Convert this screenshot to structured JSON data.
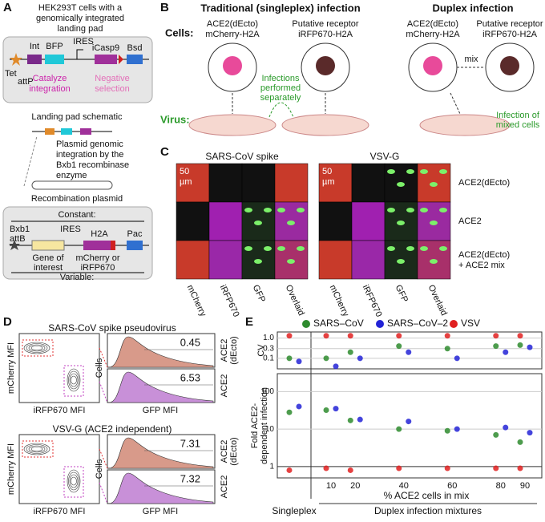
{
  "panel_labels": [
    "A",
    "B",
    "C",
    "D",
    "E"
  ],
  "a": {
    "title_lines": [
      "HEK293T cells with a",
      "genomically integrated",
      "landing pad"
    ],
    "tet": "Tet",
    "attp": "attP",
    "int": "Int",
    "bfp": "BFP",
    "ires": "IRES",
    "icasp9": "iCasp9",
    "bsd": "Bsd",
    "catalyze": [
      "Catalyze",
      "integration"
    ],
    "negative": [
      "Negative",
      "selection"
    ],
    "landing_pad": "Landing pad schematic",
    "plasmid_text": [
      "Plasmid genomic",
      "integration by the",
      "Bxb1 recombinase",
      "enzyme"
    ],
    "recomb": "Recombination plasmid",
    "constant": "Constant:",
    "bxb1": [
      "Bxb1",
      "attB"
    ],
    "ires2": "IRES",
    "h2a": "H2A",
    "pac": "Pac",
    "goi": [
      "Gene of",
      "interest"
    ],
    "reporter": [
      "mCherry or",
      "iRFP670"
    ],
    "variable": "Variable:"
  },
  "b": {
    "trad": "Traditional (singleplex) infection",
    "duplex": "Duplex infection",
    "cells": "Cells:",
    "virus": "Virus:",
    "ace2": [
      "ACE2(dEcto)",
      "mCherry-H2A"
    ],
    "putative": [
      "Putative receptor",
      "iRFP670-H2A"
    ],
    "separately": [
      "Infections",
      "performed",
      "separately"
    ],
    "mix": "mix",
    "mixed": [
      "Infection of",
      "mixed cells"
    ]
  },
  "c": {
    "titles": [
      "SARS-CoV spike",
      "VSV-G"
    ],
    "scale": [
      "50",
      "µm"
    ],
    "rows": [
      [
        "ACE2(dEcto)"
      ],
      [
        "ACE2"
      ],
      [
        "ACE2(dEcto)",
        "+ ACE2 mix"
      ]
    ],
    "cols": [
      "mCherry",
      "iRFP670",
      "GFP",
      "Overlaid"
    ]
  },
  "d": {
    "titles": [
      "SARS-CoV spike pseudovirus",
      "VSV-G (ACE2 independent)"
    ],
    "ylab": "mCherry MFI",
    "xlab": "iRFP670 MFI",
    "cells": "Cells",
    "gfp": "GFP MFI",
    "values": [
      [
        0.45,
        6.53
      ],
      [
        7.31,
        7.32
      ]
    ],
    "rows": [
      [
        "ACE2",
        "(dEcto)"
      ],
      [
        "ACE2"
      ]
    ]
  },
  "chart_data": [
    {
      "type": "scatter",
      "ylabel": "CV",
      "ylog": true,
      "ylim": [
        0.03,
        2
      ],
      "yticks": [
        0.1,
        0.3,
        {
          "value": 1,
          "label": "1.0"
        }
      ],
      "series": [
        {
          "name": "SARS–CoV",
          "color": "#2e8b2e",
          "values": [
            0.1,
            0.1,
            0.2,
            0.4,
            0.3,
            0.4,
            0.45
          ]
        },
        {
          "name": "SARS–CoV–2",
          "color": "#2323d6",
          "values": [
            0.07,
            0.04,
            0.1,
            0.2,
            0.1,
            0.2,
            0.35
          ]
        },
        {
          "name": "VSV",
          "color": "#e02020",
          "values": [
            1.3,
            1.3,
            1.3,
            1.3,
            1.3,
            1.3,
            1.3
          ]
        }
      ]
    },
    {
      "type": "scatter",
      "ylabel": [
        "Fold ACE2-",
        "dependent infection"
      ],
      "ylog": true,
      "ylim": [
        0.5,
        300
      ],
      "yticks": [
        1,
        10,
        100
      ],
      "categories": [
        null,
        "10",
        "20",
        "40",
        "60",
        "80",
        "90"
      ],
      "xlabel": "% ACE2 cells in mix",
      "group_labels": [
        "Singleplex",
        "Duplex infection mixtures"
      ],
      "series": [
        {
          "color": "#2e8b2e",
          "values": [
            28,
            32,
            17,
            10,
            9,
            7,
            4.5
          ]
        },
        {
          "color": "#2323d6",
          "values": [
            40,
            35,
            18,
            16,
            10,
            11,
            8
          ]
        },
        {
          "color": "#e02020",
          "values": [
            0.8,
            0.9,
            0.8,
            0.9,
            0.9,
            0.9,
            0.9
          ]
        }
      ]
    }
  ]
}
